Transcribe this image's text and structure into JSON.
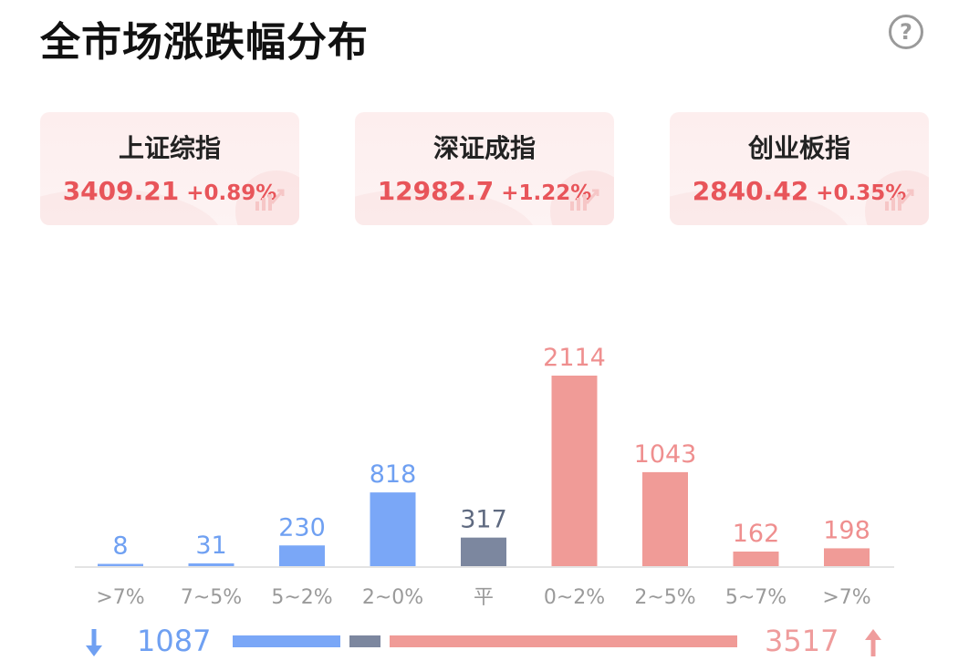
{
  "header": {
    "title": "全市场涨跌幅分布",
    "help_icon": "question-circle-icon"
  },
  "indices": [
    {
      "name": "上证综指",
      "price": "3409.21",
      "change": "+0.89%"
    },
    {
      "name": "深证成指",
      "price": "12982.7",
      "change": "+1.22%"
    },
    {
      "name": "创业板指",
      "price": "2840.42",
      "change": "+0.35%"
    }
  ],
  "colors": {
    "down": "#7aa7f7",
    "flat": "#7c879f",
    "up": "#f09b97",
    "up_text": "#e8555a"
  },
  "chart_data": {
    "type": "bar",
    "title": "全市场涨跌幅分布",
    "categories": [
      ">7%",
      "7~5%",
      "5~2%",
      "2~0%",
      "平",
      "0~2%",
      "2~5%",
      "5~7%",
      ">7%"
    ],
    "values": [
      8,
      31,
      230,
      818,
      317,
      2114,
      1043,
      162,
      198
    ],
    "groups": [
      "down",
      "down",
      "down",
      "down",
      "flat",
      "up",
      "up",
      "up",
      "up"
    ],
    "ylim": [
      0,
      2114
    ]
  },
  "summary": {
    "down_count": "1087",
    "up_count": "3517",
    "flat_count": 317
  }
}
